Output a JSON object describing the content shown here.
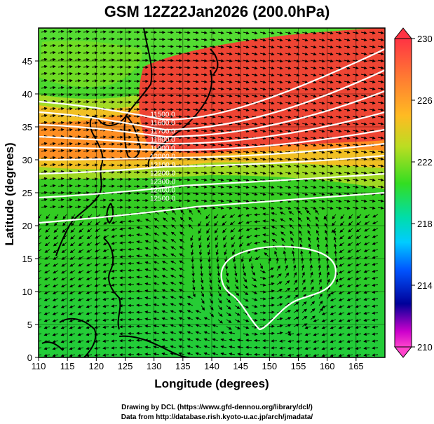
{
  "title": "GSM 12Z22Jan2026 (200.0hPa)",
  "axes": {
    "xlabel": "Longitude (degrees)",
    "ylabel": "Latitude  (degrees)",
    "x_ticks": [
      "110",
      "115",
      "120",
      "125",
      "130",
      "135",
      "140",
      "145",
      "150",
      "155",
      "160",
      "165"
    ],
    "y_ticks": [
      "0",
      "5",
      "10",
      "15",
      "20",
      "25",
      "30",
      "35",
      "40",
      "45"
    ],
    "x_range": [
      110,
      170
    ],
    "y_range": [
      0,
      50
    ]
  },
  "colorbar": {
    "labels": [
      "230",
      "226",
      "222",
      "218",
      "214",
      "210"
    ],
    "range": [
      210,
      230
    ],
    "colors": [
      "#ff33bb",
      "#cc00cc",
      "#000099",
      "#0066ff",
      "#00ccff",
      "#00dd99",
      "#22dd22",
      "#66dd22",
      "#bbdd22",
      "#ffcc22",
      "#ff8822",
      "#ff4433"
    ]
  },
  "contour_labels": [
    "11500.0",
    "11600.0",
    "11700.0",
    "11800.0",
    "11900.0",
    "12000.0",
    "12100.0",
    "12200.0",
    "12300.0",
    "12400.0",
    "12500.0"
  ],
  "credits": [
    "Drawing by DCL (https://www.gfd-dennou.org/library/dcl/)",
    "Data from http://database.rish.kyoto-u.ac.jp/arch/jmadata/"
  ],
  "colors": {
    "warm": "#ee4433",
    "orange": "#ff9922",
    "green": "#33cc22",
    "contour": "#ffffff",
    "coast": "#000000"
  }
}
